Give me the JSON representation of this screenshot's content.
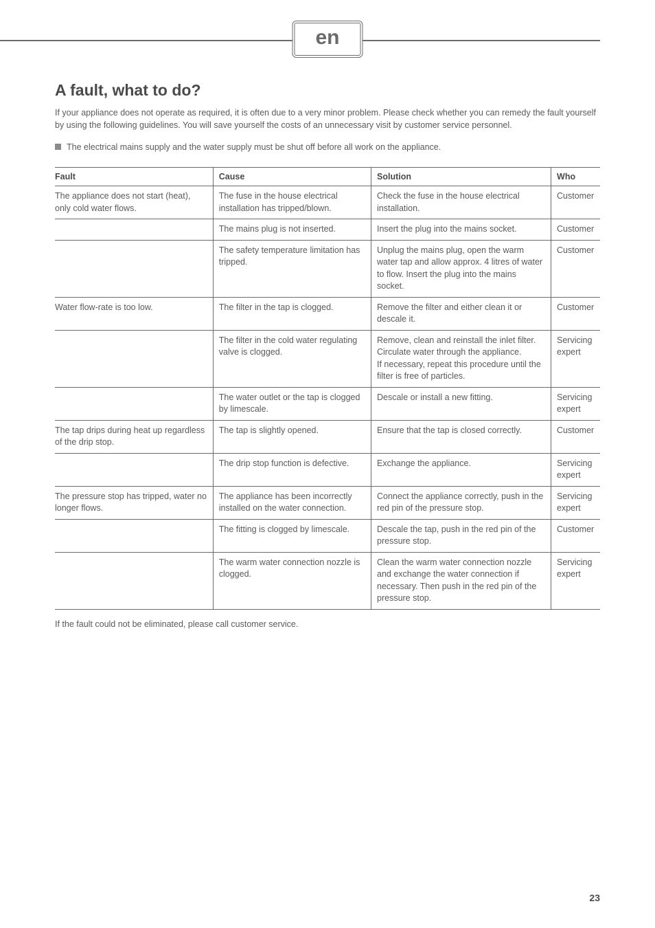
{
  "header": {
    "lang_badge": "en"
  },
  "title": "A fault, what to do?",
  "intro": "If your appliance does not operate as required, it is often due to a very minor problem. Please check whether you can remedy the fault yourself by using the following guidelines. You will save yourself the costs of an unnecessary visit by customer service personnel.",
  "note": "The electrical mains supply and the water supply must be shut off before all work on the appliance.",
  "table": {
    "headers": {
      "fault": "Fault",
      "cause": "Cause",
      "solution": "Solution",
      "who": "Who"
    },
    "rows": [
      {
        "fault": "The appliance does not start (heat),\nonly cold water flows.",
        "cause": "The fuse in the house electrical installation has tripped/blown.",
        "solution": "Check the fuse in the house electrical installation.",
        "who": "Customer"
      },
      {
        "fault": "",
        "cause": "The mains plug is not inserted.",
        "solution": "Insert the plug into the mains socket.",
        "who": "Customer"
      },
      {
        "fault": "",
        "cause": "The safety temperature limitation has tripped.",
        "solution": "Unplug the mains plug, open the warm water tap and allow approx. 4 litres of water to flow. Insert the plug into the mains socket.",
        "who": "Customer"
      },
      {
        "fault": "Water flow-rate is too low.",
        "cause": "The filter in the tap is clogged.",
        "solution": "Remove the filter and either clean it or descale it.",
        "who": "Customer"
      },
      {
        "fault": "",
        "cause": "The filter in the cold water regulating valve is clogged.",
        "solution": "Remove, clean and reinstall the inlet filter. Circulate water through the appliance.\nIf necessary, repeat this procedure until the filter is free of particles.",
        "who": "Servicing expert"
      },
      {
        "fault": "",
        "cause": "The water outlet or the tap is clogged by limescale.",
        "solution": "Descale or install a new fitting.",
        "who": "Servicing expert"
      },
      {
        "fault": "The tap drips during heat up regardless of the drip stop.",
        "cause": "The tap is slightly opened.",
        "solution": "Ensure that the tap is closed correctly.",
        "who": "Customer"
      },
      {
        "fault": "",
        "cause": "The drip stop function is defective.",
        "solution": "Exchange the appliance.",
        "who": "Servicing expert"
      },
      {
        "fault": "The pressure stop has tripped, water no longer flows.",
        "cause": "The appliance has been incorrectly installed on the water connection.",
        "solution": "Connect the appliance correctly, push in the red pin of the pressure stop.",
        "who": "Servicing expert"
      },
      {
        "fault": "",
        "cause": "The fitting is clogged by limescale.",
        "solution": "Descale the tap, push in the red pin of the pressure stop.",
        "who": "Customer"
      },
      {
        "fault": "",
        "cause": "The warm water connection nozzle is clogged.",
        "solution": "Clean the warm water connection nozzle and exchange the water connection if necessary. Then push in the red pin of the pressure stop.",
        "who": "Servicing expert"
      }
    ]
  },
  "outro": "If the fault could not be eliminated, please call customer service.",
  "page_number": "23"
}
